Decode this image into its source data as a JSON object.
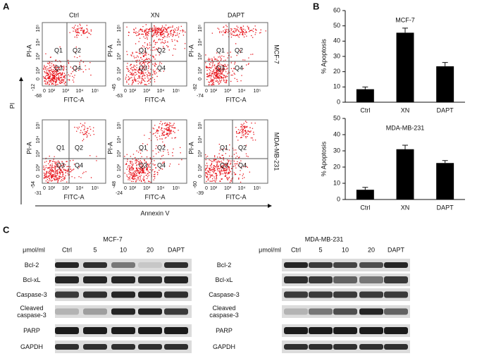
{
  "panels": {
    "A": {
      "letter": "A",
      "columns": [
        "Ctrl",
        "XN",
        "DAPT"
      ],
      "rows": [
        "MCF-7",
        "MDA-MB-231"
      ],
      "y_axis_label": "PI",
      "x_axis_label": "Annexin V",
      "plot_y_label": "PI-A",
      "plot_x_label": "FITC-A",
      "quadrants": [
        "Q1",
        "Q2",
        "Q3",
        "Q4"
      ],
      "axis_ticks": [
        "0",
        "10²",
        "10³",
        "10⁴",
        "10⁵"
      ],
      "plots": [
        [
          {
            "x_min": -68,
            "y_min": -12
          },
          {
            "x_min": -63,
            "y_min": -45
          },
          {
            "x_min": -74,
            "y_min": -82
          }
        ],
        [
          {
            "x_min": -31,
            "y_min": -54
          },
          {
            "x_min": -24,
            "y_min": -48
          },
          {
            "x_min": -39,
            "y_min": -60
          }
        ]
      ]
    },
    "B": {
      "letter": "B"
    },
    "C": {
      "letter": "C",
      "unit": "μmol/ml",
      "lanes": [
        "Ctrl",
        "5",
        "10",
        "20",
        "DAPT"
      ],
      "blots": [
        {
          "title": "MCF-7",
          "rows": [
            "Bcl-2",
            "Bcl-xL",
            "Caspase-3",
            "Cleaved caspase-3",
            "PARP",
            "GAPDH"
          ]
        },
        {
          "title": "MDA-MB-231",
          "rows": [
            "Bcl-2",
            "Bcl-xL",
            "Caspase-3",
            "Cleaved caspase-3",
            "PARP",
            "GAPDH"
          ]
        }
      ]
    }
  },
  "chart_data": [
    {
      "type": "bar",
      "title": "MCF-7",
      "y_label": "% Apoptosis",
      "categories": [
        "Ctrl",
        "XN",
        "DAPT"
      ],
      "values": [
        8.5,
        45.5,
        23.5
      ],
      "errors": [
        1.5,
        3,
        2.5
      ],
      "color": "#000000",
      "ylim": [
        0,
        60
      ],
      "yticks": [
        0,
        10,
        20,
        30,
        40,
        50,
        60
      ]
    },
    {
      "type": "bar",
      "title": "MDA-MB-231",
      "y_label": "% Apoptosis",
      "categories": [
        "Ctrl",
        "XN",
        "DAPT"
      ],
      "values": [
        6,
        31,
        22.5
      ],
      "errors": [
        1.5,
        2.5,
        1.5
      ],
      "color": "#000000",
      "ylim": [
        0,
        50
      ],
      "yticks": [
        0,
        10,
        20,
        30,
        40,
        50
      ]
    }
  ]
}
